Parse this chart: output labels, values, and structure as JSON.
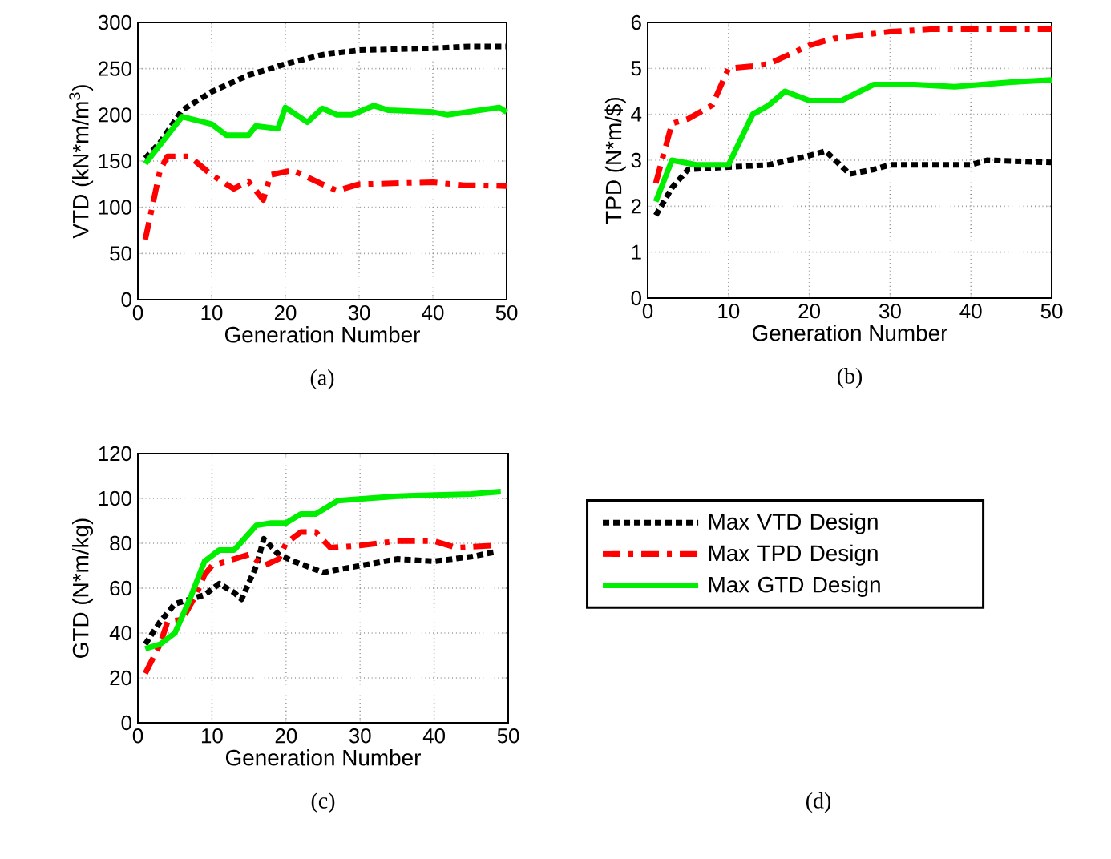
{
  "chart_data": [
    {
      "type": "line",
      "xlabel": "Generation Number",
      "ylabel": "VTD (kN*m/m$^{3}$)",
      "xlim": [
        0,
        50
      ],
      "ylim": [
        0,
        300
      ],
      "xticks": [
        0,
        10,
        20,
        30,
        40,
        50
      ],
      "yticks": [
        0,
        50,
        100,
        150,
        200,
        250,
        300
      ],
      "grid": true,
      "annotations": [
        "(a)"
      ],
      "series": [
        {
          "color": "#000000",
          "line_style": "dotted",
          "x": [
            1,
            3,
            6,
            10,
            15,
            20,
            25,
            30,
            35,
            40,
            45,
            50
          ],
          "values": [
            153,
            170,
            205,
            225,
            243,
            255,
            265,
            270,
            271,
            272,
            274,
            274
          ]
        },
        {
          "color": "#ff0000",
          "line_style": "dashed",
          "x": [
            1,
            3,
            4,
            7,
            10,
            13,
            15,
            17,
            18,
            21,
            25,
            27,
            30,
            40,
            44,
            50
          ],
          "values": [
            65,
            140,
            155,
            155,
            135,
            120,
            128,
            108,
            135,
            140,
            125,
            118,
            125,
            127,
            124,
            123
          ]
        },
        {
          "color": "#00ee00",
          "line_style": "solid",
          "x": [
            1,
            6,
            10,
            12,
            15,
            16,
            19,
            20,
            23,
            25,
            27,
            29,
            32,
            34,
            40,
            42,
            49,
            50
          ],
          "values": [
            147,
            198,
            190,
            178,
            178,
            188,
            185,
            208,
            192,
            207,
            200,
            200,
            210,
            205,
            203,
            200,
            208,
            203
          ]
        }
      ]
    },
    {
      "type": "line",
      "xlabel": "Generation Number",
      "ylabel": "TPD (N*m/$)",
      "xlim": [
        0,
        50
      ],
      "ylim": [
        0,
        6
      ],
      "xticks": [
        0,
        10,
        20,
        30,
        40,
        50
      ],
      "yticks": [
        0,
        1,
        2,
        3,
        4,
        5,
        6
      ],
      "grid": true,
      "annotations": [
        "(b)"
      ],
      "series": [
        {
          "color": "#000000",
          "line_style": "dotted",
          "x": [
            1,
            3,
            5,
            10,
            15,
            20,
            22,
            25,
            28,
            30,
            35,
            40,
            42,
            50
          ],
          "values": [
            1.8,
            2.4,
            2.8,
            2.85,
            2.9,
            3.1,
            3.2,
            2.7,
            2.8,
            2.9,
            2.9,
            2.9,
            3.0,
            2.95
          ]
        },
        {
          "color": "#ff0000",
          "line_style": "dashed",
          "x": [
            1,
            3,
            5,
            8,
            10,
            13,
            15,
            20,
            23,
            30,
            35,
            50
          ],
          "values": [
            2.5,
            3.8,
            3.9,
            4.2,
            5.0,
            5.05,
            5.1,
            5.5,
            5.65,
            5.8,
            5.85,
            5.85
          ]
        },
        {
          "color": "#00ee00",
          "line_style": "solid",
          "x": [
            1,
            3,
            6,
            10,
            13,
            15,
            17,
            20,
            24,
            28,
            33,
            38,
            45,
            50
          ],
          "values": [
            2.1,
            3.0,
            2.9,
            2.9,
            4.0,
            4.2,
            4.5,
            4.3,
            4.3,
            4.65,
            4.65,
            4.6,
            4.7,
            4.75
          ]
        }
      ]
    },
    {
      "type": "line",
      "xlabel": "Generation Number",
      "ylabel": "GTD (N*m/kg)",
      "xlim": [
        0,
        50
      ],
      "ylim": [
        0,
        120
      ],
      "xticks": [
        0,
        10,
        20,
        30,
        40,
        50
      ],
      "yticks": [
        0,
        20,
        40,
        60,
        80,
        100,
        120
      ],
      "grid": true,
      "legend": "right",
      "annotations": [
        "(c)",
        "(d)"
      ],
      "series": [
        {
          "name": "Max VTD Design",
          "color": "#000000",
          "line_style": "dotted",
          "x": [
            1,
            3,
            5,
            7,
            9,
            11,
            13,
            14,
            16,
            17,
            19,
            21,
            25,
            30,
            35,
            40,
            45,
            48
          ],
          "values": [
            35,
            45,
            53,
            55,
            57,
            62,
            58,
            55,
            70,
            82,
            75,
            72,
            67,
            70,
            73,
            72,
            74,
            76
          ]
        },
        {
          "name": "Max TPD Design",
          "color": "#ff0000",
          "line_style": "dashed",
          "x": [
            1,
            3,
            4,
            6,
            8,
            9,
            10,
            13,
            15,
            17,
            19,
            20,
            22,
            24,
            26,
            30,
            35,
            40,
            43,
            48
          ],
          "values": [
            22,
            35,
            45,
            46,
            58,
            66,
            70,
            73,
            75,
            70,
            73,
            80,
            85,
            85,
            78,
            79,
            81,
            81,
            78,
            79
          ]
        },
        {
          "name": "Max GTD Design",
          "color": "#00ee00",
          "line_style": "solid",
          "x": [
            1,
            3,
            5,
            7,
            9,
            11,
            13,
            16,
            18,
            20,
            22,
            24,
            27,
            35,
            45,
            49
          ],
          "values": [
            33,
            35,
            40,
            55,
            72,
            77,
            77,
            88,
            89,
            89,
            93,
            93,
            99,
            101,
            102,
            103
          ]
        }
      ]
    }
  ]
}
